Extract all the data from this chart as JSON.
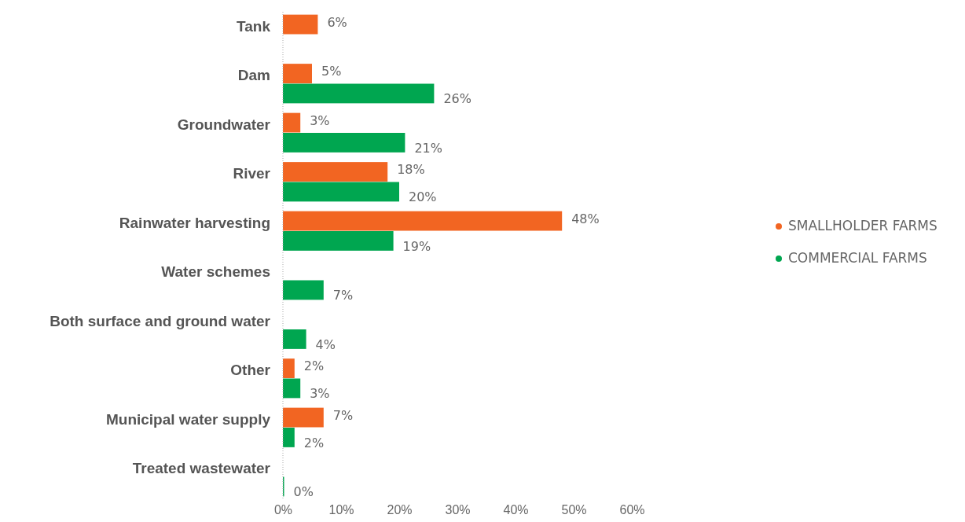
{
  "chart_data": {
    "type": "bar",
    "orientation": "horizontal",
    "categories": [
      "Tank",
      "Dam",
      "Groundwater",
      "River",
      "Rainwater harvesting",
      "Water schemes",
      "Both surface and ground water",
      "Other",
      "Municipal water supply",
      "Treated wastewater"
    ],
    "series": [
      {
        "name": "SMALLHOLDER FARMS",
        "color": "#f26522",
        "values": [
          6,
          5,
          3,
          18,
          48,
          null,
          null,
          2,
          7,
          null
        ],
        "value_labels": [
          "6%",
          "5%",
          "3%",
          "18%",
          "48%",
          null,
          null,
          "2%",
          "7%",
          null
        ]
      },
      {
        "name": "COMMERCIAL FARMS",
        "color": "#00a650",
        "values": [
          null,
          26,
          21,
          20,
          19,
          7,
          4,
          3,
          2,
          0
        ],
        "value_labels": [
          null,
          "26%",
          "21%",
          "20%",
          "19%",
          "7%",
          "4%",
          "3%",
          "2%",
          "0%"
        ]
      }
    ],
    "xlim": [
      0,
      60
    ],
    "xticks": [
      {
        "value": 0,
        "label": "0%"
      },
      {
        "value": 10,
        "label": "10%"
      },
      {
        "value": 20,
        "label": "20%"
      },
      {
        "value": 30,
        "label": "30%"
      },
      {
        "value": 40,
        "label": "40%"
      },
      {
        "value": 50,
        "label": "50%"
      },
      {
        "value": 60,
        "label": "60%"
      }
    ],
    "grid": false,
    "legend": "right"
  }
}
